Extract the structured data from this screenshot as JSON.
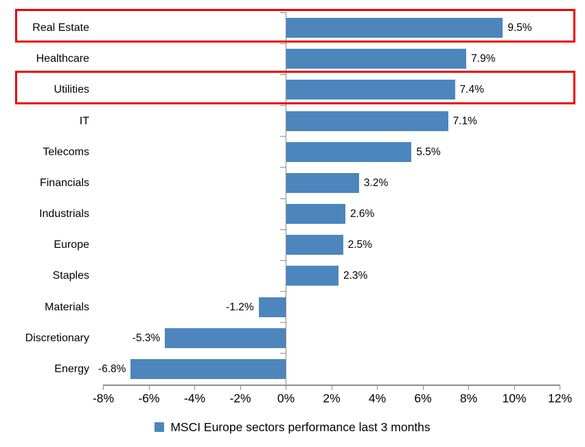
{
  "chart_data": {
    "type": "bar",
    "orientation": "horizontal",
    "title": "",
    "xlabel": "",
    "ylabel": "",
    "categories": [
      "Real Estate",
      "Healthcare",
      "Utilities",
      "IT",
      "Telecoms",
      "Financials",
      "Industrials",
      "Europe",
      "Staples",
      "Materials",
      "Discretionary",
      "Energy"
    ],
    "values": [
      9.5,
      7.9,
      7.4,
      7.1,
      5.5,
      3.2,
      2.6,
      2.5,
      2.3,
      -1.2,
      -5.3,
      -6.8
    ],
    "value_labels": [
      "9.5%",
      "7.9%",
      "7.4%",
      "7.1%",
      "5.5%",
      "3.2%",
      "2.6%",
      "2.5%",
      "2.3%",
      "-1.2%",
      "-5.3%",
      "-6.8%"
    ],
    "xlim": [
      -8,
      12
    ],
    "x_ticks": [
      -8,
      -6,
      -4,
      -2,
      0,
      2,
      4,
      6,
      8,
      10,
      12
    ],
    "x_tick_labels": [
      "-8%",
      "-6%",
      "-4%",
      "-2%",
      "0%",
      "2%",
      "4%",
      "6%",
      "8%",
      "10%",
      "12%"
    ],
    "grid": false,
    "legend": "MSCI Europe sectors performance last 3 months",
    "legend_position": "bottom",
    "bar_color": "#4d86bc",
    "axis_color": "#8c8c8c",
    "highlight_color": "#ee0000",
    "highlighted_categories": [
      "Real Estate",
      "Utilities"
    ]
  }
}
